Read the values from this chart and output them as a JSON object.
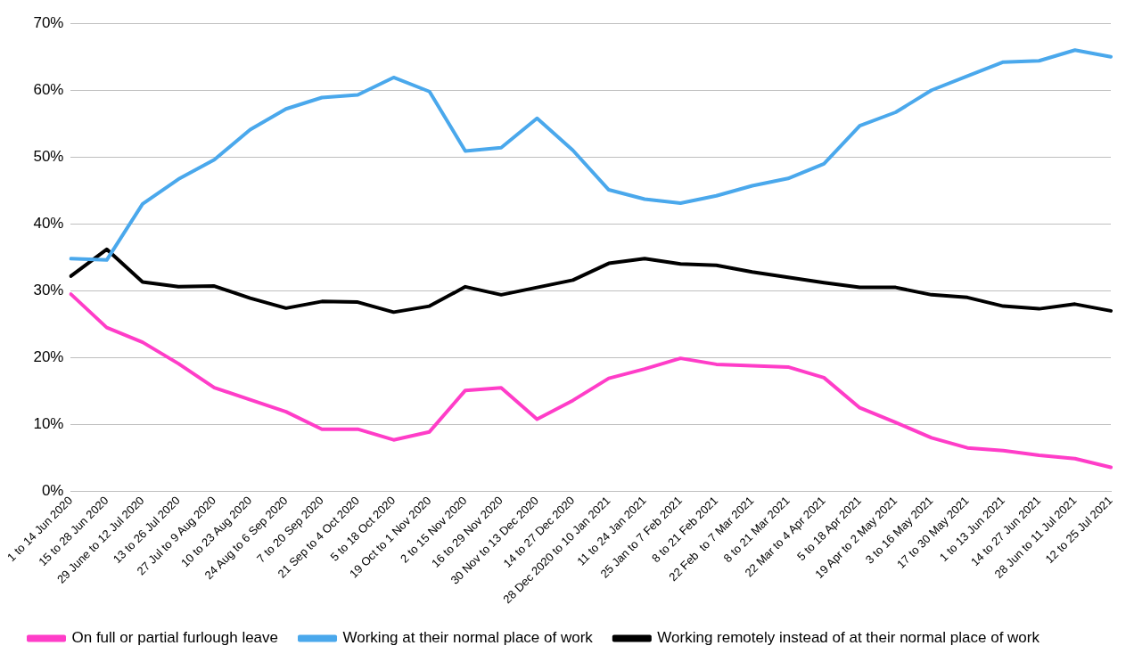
{
  "chart_data": {
    "type": "line",
    "categories": [
      "1 to 14 Jun 2020",
      "15 to 28 Jun 2020",
      "29 June to 12 Jul 2020",
      "13 to 26 Jul 2020",
      "27 Jul to 9 Aug 2020",
      "10 to 23 Aug 2020",
      "24 Aug to 6 Sep 2020",
      "7 to 20 Sep 2020",
      "21 Sep to 4 Oct 2020",
      "5 to 18 Oct 2020",
      "19 Oct to 1 Nov 2020",
      "2 to 15 Nov 2020",
      "16 to 29 Nov 2020",
      "30 Nov to 13 Dec 2020",
      "14 to 27 Dec 2020",
      "28 Dec 2020 to 10 Jan 2021",
      "11 to 24 Jan 2021",
      "25 Jan to 7 Feb 2021",
      "8 to 21 Feb 2021",
      "22 Feb  to 7 Mar 2021",
      "8 to 21 Mar 2021",
      "22 Mar to 4 Apr 2021",
      "5 to 18 Apr 2021",
      "19 Apr to 2 May 2021",
      "3 to 16 May 2021",
      "17 to 30 May 2021",
      "1 to 13 Jun 2021",
      "14 to 27 Jun 2021",
      "28 Jun to 11 Jul 2021",
      "12 to 25 Jul 2021"
    ],
    "series": [
      {
        "name": "On full or partial furlough leave",
        "color": "#ff3dc8",
        "values": [
          29.5,
          24.5,
          22.3,
          19.1,
          15.5,
          13.7,
          11.9,
          9.3,
          9.3,
          7.7,
          8.9,
          15.1,
          15.5,
          10.8,
          13.6,
          16.9,
          18.3,
          19.9,
          19.0,
          18.8,
          18.6,
          17.0,
          12.5,
          10.3,
          8.0,
          6.5,
          6.1,
          5.4,
          4.9,
          3.6
        ]
      },
      {
        "name": "Working at their normal place of work",
        "color": "#4aa8ec",
        "values": [
          34.8,
          34.6,
          43.0,
          46.7,
          49.6,
          54.1,
          57.2,
          58.9,
          59.3,
          61.9,
          59.8,
          50.9,
          51.4,
          55.8,
          51.0,
          45.1,
          43.7,
          43.1,
          44.2,
          45.7,
          46.8,
          49.0,
          54.7,
          56.7,
          60.0,
          62.1,
          64.2,
          64.4,
          66.0,
          65.0
        ]
      },
      {
        "name": "Working remotely instead of at their normal place of work",
        "color": "#000000",
        "values": [
          32.2,
          36.2,
          31.3,
          30.6,
          30.7,
          28.9,
          27.4,
          28.4,
          28.3,
          26.8,
          27.7,
          30.6,
          29.4,
          30.5,
          31.6,
          34.1,
          34.8,
          34.0,
          33.8,
          32.8,
          32.0,
          31.2,
          30.5,
          30.5,
          29.4,
          29.0,
          27.7,
          27.3,
          28.0,
          27.0
        ]
      }
    ],
    "ylim": [
      0,
      70
    ],
    "yticks": [
      {
        "value": 0,
        "label": "0%"
      },
      {
        "value": 10,
        "label": "10%"
      },
      {
        "value": 20,
        "label": "20%"
      },
      {
        "value": 30,
        "label": "30%"
      },
      {
        "value": 40,
        "label": "40%"
      },
      {
        "value": 50,
        "label": "50%"
      },
      {
        "value": 60,
        "label": "60%"
      },
      {
        "value": 70,
        "label": "70%"
      }
    ],
    "grid": "y",
    "legend": "bottom",
    "marker": "none",
    "line_style": "solid"
  }
}
